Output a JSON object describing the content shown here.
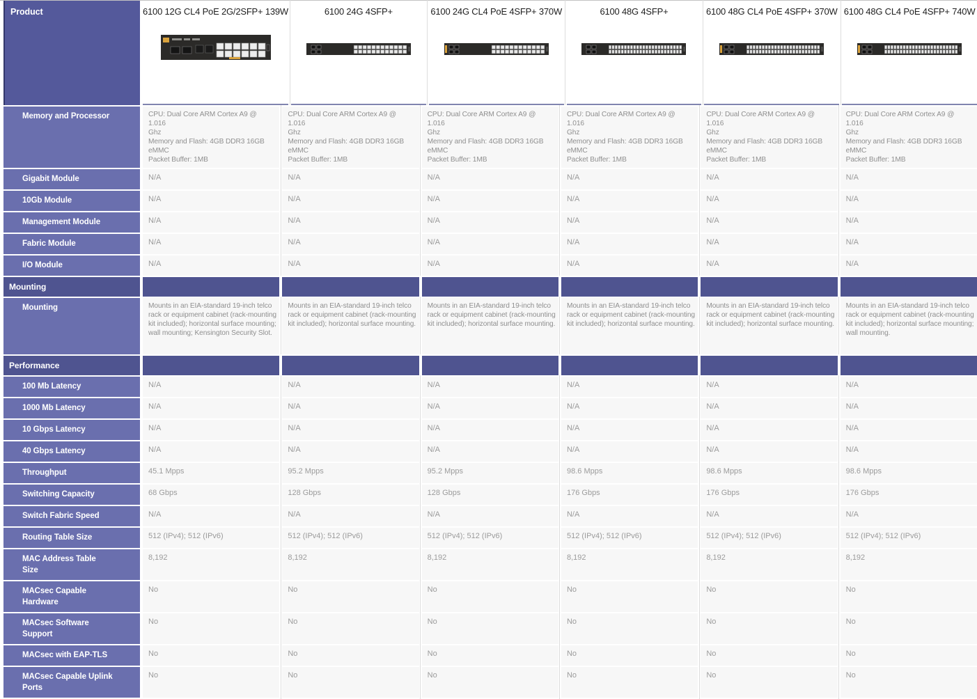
{
  "table": {
    "corner_label": "Product",
    "colors": {
      "header-blue": "#6A6FAE",
      "section-blue": "#4F5490",
      "product-blue": "#54599B",
      "divider-blue": "#8084AF",
      "cell-bg": "#F7F7F7",
      "value-gray": "#9B9B9B",
      "text-gray": "#8F8F8F",
      "title-dark": "#1F1F1F",
      "poe-yellow": "#D9A23C",
      "switch-dark": "#2B2A28"
    },
    "products": [
      {
        "name": "6100 12G CL4 PoE 2G/2SFP+ 139W",
        "image": "switch-12-poe"
      },
      {
        "name": "6100 24G 4SFP+",
        "image": "switch-24"
      },
      {
        "name": "6100 24G CL4 PoE 4SFP+ 370W",
        "image": "switch-24-poe"
      },
      {
        "name": "6100 48G 4SFP+",
        "image": "switch-48"
      },
      {
        "name": "6100 48G CL4 PoE 4SFP+ 370W",
        "image": "switch-48-poe"
      },
      {
        "name": "6100 48G CL4 PoE 4SFP+ 740W",
        "image": "switch-48-poe"
      }
    ],
    "rows": [
      {
        "kind": "data",
        "style": "para",
        "label": "Memory and Processor",
        "values": [
          "CPU: Dual Core ARM Cortex A9 @\n1.016\nGhz\nMemory and Flash: 4GB DDR3 16GB\neMMC\nPacket Buffer: 1MB",
          "CPU: Dual Core ARM Cortex A9 @\n1.016\nGhz\nMemory and Flash: 4GB DDR3 16GB\neMMC\nPacket Buffer: 1MB",
          "CPU: Dual Core ARM Cortex A9 @\n1.016\nGhz\nMemory and Flash: 4GB DDR3 16GB\neMMC\nPacket Buffer: 1MB",
          "CPU: Dual Core ARM Cortex A9 @\n1.016\nGhz\nMemory and Flash: 4GB DDR3 16GB\neMMC\nPacket Buffer: 1MB",
          "CPU: Dual Core ARM Cortex A9 @\n1.016\nGhz\nMemory and Flash: 4GB DDR3 16GB\neMMC\nPacket Buffer: 1MB",
          "CPU: Dual Core ARM Cortex A9 @\n1.016\nGhz\nMemory and Flash: 4GB DDR3 16GB\neMMC\nPacket Buffer: 1MB"
        ]
      },
      {
        "kind": "data",
        "label": "Gigabit Module",
        "values": [
          "N/A",
          "N/A",
          "N/A",
          "N/A",
          "N/A",
          "N/A"
        ]
      },
      {
        "kind": "data",
        "label": "10Gb Module",
        "values": [
          "N/A",
          "N/A",
          "N/A",
          "N/A",
          "N/A",
          "N/A"
        ]
      },
      {
        "kind": "data",
        "label": "Management Module",
        "values": [
          "N/A",
          "N/A",
          "N/A",
          "N/A",
          "N/A",
          "N/A"
        ]
      },
      {
        "kind": "data",
        "label": "Fabric Module",
        "values": [
          "N/A",
          "N/A",
          "N/A",
          "N/A",
          "N/A",
          "N/A"
        ]
      },
      {
        "kind": "data",
        "label": "I/O Module",
        "values": [
          "N/A",
          "N/A",
          "N/A",
          "N/A",
          "N/A",
          "N/A"
        ]
      },
      {
        "kind": "section",
        "label": "Mounting"
      },
      {
        "kind": "data",
        "style": "para",
        "label": "Mounting",
        "values": [
          "Mounts in an EIA-standard 19-inch telco rack or equipment cabinet (rack-mounting kit included); horizontal surface mounting; wall mounting; Kensington Security Slot.",
          "Mounts in an EIA-standard 19-inch telco rack or equipment cabinet (rack-mounting kit included); horizontal surface mounting.",
          "Mounts in an EIA-standard 19-inch telco rack or equipment cabinet (rack-mounting kit included); horizontal surface mounting.",
          "Mounts in an EIA-standard 19-inch telco rack or equipment cabinet (rack-mounting kit included); horizontal surface mounting.",
          "Mounts in an EIA-standard 19-inch telco rack or equipment cabinet (rack-mounting kit included); horizontal surface mounting.",
          "Mounts in an EIA-standard 19-inch telco rack or equipment cabinet (rack-mounting kit included); horizontal surface mounting; wall mounting."
        ]
      },
      {
        "kind": "section",
        "label": "Performance"
      },
      {
        "kind": "data",
        "label": "100 Mb Latency",
        "values": [
          "N/A",
          "N/A",
          "N/A",
          "N/A",
          "N/A",
          "N/A"
        ]
      },
      {
        "kind": "data",
        "label": "1000 Mb Latency",
        "values": [
          "N/A",
          "N/A",
          "N/A",
          "N/A",
          "N/A",
          "N/A"
        ]
      },
      {
        "kind": "data",
        "label": "10 Gbps Latency",
        "values": [
          "N/A",
          "N/A",
          "N/A",
          "N/A",
          "N/A",
          "N/A"
        ]
      },
      {
        "kind": "data",
        "label": "40 Gbps Latency",
        "values": [
          "N/A",
          "N/A",
          "N/A",
          "N/A",
          "N/A",
          "N/A"
        ]
      },
      {
        "kind": "data",
        "label": "Throughput",
        "values": [
          "45.1 Mpps",
          "95.2 Mpps",
          "95.2 Mpps",
          "98.6 Mpps",
          "98.6 Mpps",
          "98.6 Mpps"
        ]
      },
      {
        "kind": "data",
        "label": "Switching Capacity",
        "values": [
          "68 Gbps",
          "128 Gbps",
          "128 Gbps",
          "176 Gbps",
          "176 Gbps",
          "176 Gbps"
        ]
      },
      {
        "kind": "data",
        "label": "Switch Fabric Speed",
        "values": [
          "N/A",
          "N/A",
          "N/A",
          "N/A",
          "N/A",
          "N/A"
        ]
      },
      {
        "kind": "data",
        "label": "Routing Table Size",
        "values": [
          "512 (IPv4); 512 (IPv6)",
          "512 (IPv4); 512 (IPv6)",
          "512 (IPv4); 512 (IPv6)",
          "512 (IPv4); 512 (IPv6)",
          "512 (IPv4); 512 (IPv6)",
          "512 (IPv4); 512 (IPv6)"
        ]
      },
      {
        "kind": "data",
        "label": "MAC Address Table\nSize",
        "values": [
          "8,192",
          "8,192",
          "8,192",
          "8,192",
          "8,192",
          "8,192"
        ]
      },
      {
        "kind": "data",
        "label": "MACsec Capable\nHardware",
        "values": [
          "No",
          "No",
          "No",
          "No",
          "No",
          "No"
        ]
      },
      {
        "kind": "data",
        "label": "MACsec Software\nSupport",
        "values": [
          "No",
          "No",
          "No",
          "No",
          "No",
          "No"
        ]
      },
      {
        "kind": "data",
        "label": "MACsec with EAP-TLS",
        "values": [
          "No",
          "No",
          "No",
          "No",
          "No",
          "No"
        ]
      },
      {
        "kind": "data",
        "label": "MACsec Capable Uplink\nPorts",
        "values": [
          "No",
          "No",
          "No",
          "No",
          "No",
          "No"
        ]
      }
    ]
  }
}
